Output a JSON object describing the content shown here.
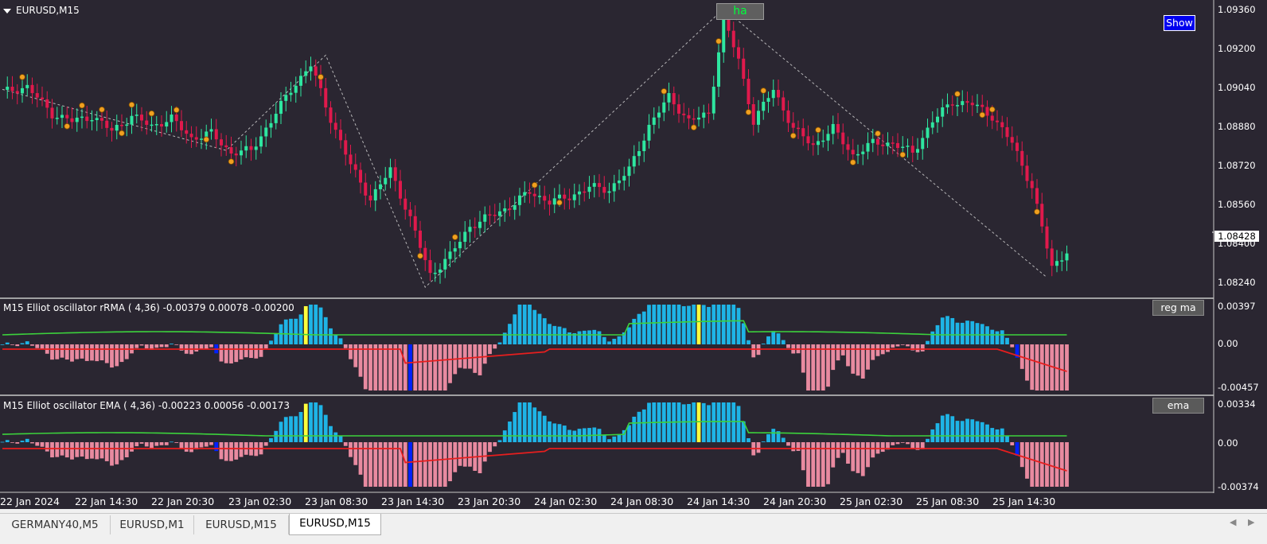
{
  "window": {
    "symbol_title": "EURUSD,M15"
  },
  "buttons": {
    "ha": "ha",
    "show": "Show",
    "reg_ma": "reg ma",
    "ema": "ema"
  },
  "price_axis": {
    "labels": [
      "1.09360",
      "1.09200",
      "1.09040",
      "1.08880",
      "1.08720",
      "1.08560",
      "1.08400",
      "1.08240"
    ],
    "current_price": "1.08428"
  },
  "indicator_1": {
    "label": "M15 Elliot oscillator rRMA ( 4,36) -0.00379 0.00078 -0.00200",
    "axis": [
      "0.00397",
      "0.00",
      "-0.00457"
    ]
  },
  "indicator_2": {
    "label": "M15 Elliot oscillator EMA ( 4,36) -0.00223 0.00056 -0.00173",
    "axis": [
      "0.00334",
      "0.00",
      "-0.00374"
    ]
  },
  "time_axis": [
    "22 Jan 2024",
    "22 Jan 14:30",
    "22 Jan 20:30",
    "23 Jan 02:30",
    "23 Jan 08:30",
    "23 Jan 14:30",
    "23 Jan 20:30",
    "24 Jan 02:30",
    "24 Jan 08:30",
    "24 Jan 14:30",
    "24 Jan 20:30",
    "25 Jan 02:30",
    "25 Jan 08:30",
    "25 Jan 14:30"
  ],
  "tabs": [
    {
      "label": "GERMANY40,M5",
      "active": false
    },
    {
      "label": "EURUSD,M1",
      "active": false
    },
    {
      "label": "EURUSD,M15",
      "active": false
    },
    {
      "label": "EURUSD,M15",
      "active": true
    }
  ],
  "colors": {
    "background": "#2a2631",
    "bull_candle": "#2ee6a0",
    "bear_candle": "#e0194c",
    "osc_positive": "#1eb4e6",
    "osc_negative": "#e88aa0",
    "signal_green": "#3cd23c",
    "signal_red": "#e61e1e",
    "zigzag": "#d0d0d0"
  },
  "chart_data": {
    "type": "candlestick",
    "price_path": [
      [
        0,
        1.0902
      ],
      [
        5,
        1.0904
      ],
      [
        10,
        1.0893
      ],
      [
        14,
        1.089
      ],
      [
        18,
        1.0892
      ],
      [
        22,
        1.0886
      ],
      [
        26,
        1.0892
      ],
      [
        30,
        1.0888
      ],
      [
        34,
        1.0891
      ],
      [
        38,
        1.0883
      ],
      [
        42,
        1.0885
      ],
      [
        46,
        1.0877
      ],
      [
        50,
        1.0878
      ],
      [
        54,
        1.089
      ],
      [
        58,
        1.0903
      ],
      [
        62,
        1.0913
      ],
      [
        66,
        1.0891
      ],
      [
        70,
        1.0872
      ],
      [
        74,
        1.0858
      ],
      [
        78,
        1.087
      ],
      [
        82,
        1.085
      ],
      [
        86,
        1.0827
      ],
      [
        90,
        1.0835
      ],
      [
        94,
        1.0847
      ],
      [
        98,
        1.0851
      ],
      [
        102,
        1.0855
      ],
      [
        106,
        1.0861
      ],
      [
        110,
        1.0857
      ],
      [
        114,
        1.0859
      ],
      [
        118,
        1.0863
      ],
      [
        122,
        1.0862
      ],
      [
        126,
        1.087
      ],
      [
        130,
        1.0888
      ],
      [
        134,
        1.09
      ],
      [
        138,
        1.089
      ],
      [
        142,
        1.0893
      ],
      [
        145,
        1.0932
      ],
      [
        148,
        1.0915
      ],
      [
        151,
        1.089
      ],
      [
        155,
        1.0903
      ],
      [
        159,
        1.0887
      ],
      [
        163,
        1.088
      ],
      [
        167,
        1.0887
      ],
      [
        171,
        1.0876
      ],
      [
        175,
        1.0881
      ],
      [
        179,
        1.0881
      ],
      [
        183,
        1.0877
      ],
      [
        187,
        1.089
      ],
      [
        191,
        1.0898
      ],
      [
        195,
        1.0897
      ],
      [
        199,
        1.0892
      ],
      [
        203,
        1.0881
      ],
      [
        207,
        1.0863
      ],
      [
        211,
        1.083
      ],
      [
        214,
        1.0837
      ]
    ],
    "zigzag": [
      [
        0,
        1.0903
      ],
      [
        45,
        1.0878
      ],
      [
        65,
        1.0917
      ],
      [
        85,
        1.0822
      ],
      [
        145,
        1.0936
      ],
      [
        210,
        1.0826
      ]
    ],
    "oscillator_rRMA": {
      "min": -0.00457,
      "max": 0.00397,
      "last": [
        -0.00379,
        0.00078,
        -0.002
      ]
    },
    "oscillator_EMA": {
      "min": -0.00374,
      "max": 0.00334,
      "last": [
        -0.00223,
        0.00056,
        -0.00173
      ]
    }
  }
}
